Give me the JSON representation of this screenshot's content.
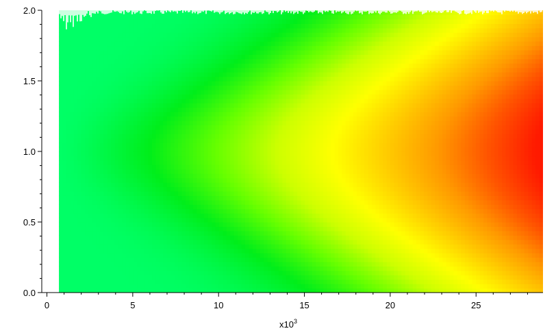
{
  "chart_data": {
    "type": "heatmap",
    "title": "",
    "xlabel": "",
    "ylabel": "",
    "x_multiplier_label": {
      "base": "x10",
      "exponent": "3"
    },
    "xlim": [
      -0.3,
      28.9
    ],
    "ylim": [
      0.0,
      2.0
    ],
    "x_ticks": [
      0,
      5,
      10,
      15,
      20,
      25
    ],
    "x_tick_labels": [
      "0",
      "5",
      "10",
      "15",
      "20",
      "25"
    ],
    "y_ticks": [
      0.0,
      0.5,
      1.0,
      1.5,
      2.0
    ],
    "y_tick_labels": [
      "0.0",
      "0.5",
      "1.0",
      "1.5",
      "2.0"
    ],
    "data_x_range": [
      0.7,
      28.9
    ],
    "data_y_range": [
      0.0,
      2.0
    ],
    "peak_y": 1.0,
    "colorscale": [
      "#00ff66",
      "#00ee1a",
      "#66ff00",
      "#ccff00",
      "#ffff00",
      "#ffcc00",
      "#ff9900",
      "#ff5500",
      "#ff1a00"
    ],
    "grid": false,
    "legend": "none"
  }
}
